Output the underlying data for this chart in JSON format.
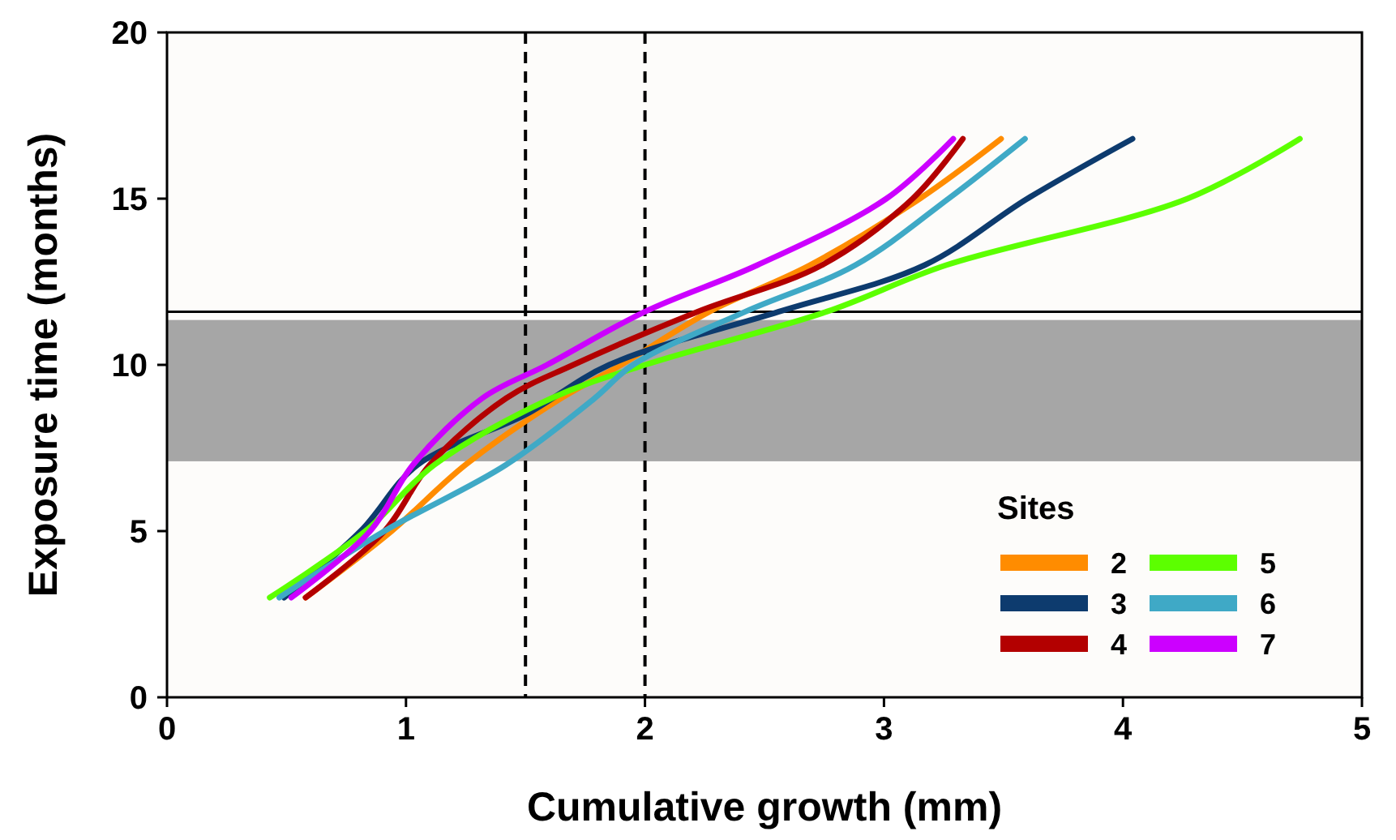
{
  "chart_data": {
    "type": "line",
    "xlabel": "Cumulative growth (mm)",
    "ylabel": "Exposure time (months)",
    "legend_title": "Sites",
    "legend": "bottom right",
    "line_style": "solid",
    "marker": "none",
    "grid": false,
    "xlim": [
      0,
      5
    ],
    "xticks": [
      0,
      1,
      2,
      3,
      4,
      5
    ],
    "ylim": [
      0,
      20
    ],
    "yticks": [
      0,
      5,
      10,
      15,
      20
    ],
    "series": [
      {
        "name": "2",
        "color": "#ff8c00",
        "x": [
          0.58,
          0.94,
          1.25,
          1.65,
          1.9,
          2.27,
          2.69,
          3.15,
          3.49
        ],
        "values": [
          3,
          5,
          7,
          9,
          10,
          11.6,
          13,
          15,
          16.8
        ]
      },
      {
        "name": "3",
        "color": "#0d3b6e",
        "x": [
          0.49,
          0.81,
          1.05,
          1.5,
          1.85,
          2.56,
          3.17,
          3.6,
          4.04
        ],
        "values": [
          3,
          5,
          7,
          8.5,
          10,
          11.6,
          13,
          15,
          16.8
        ]
      },
      {
        "name": "4",
        "color": "#b30000",
        "x": [
          0.58,
          0.91,
          1.1,
          1.42,
          1.7,
          2.22,
          2.74,
          3.12,
          3.33
        ],
        "values": [
          3,
          5,
          7,
          9,
          10,
          11.6,
          13,
          15,
          16.8
        ]
      },
      {
        "name": "5",
        "color": "#5cff00",
        "x": [
          0.43,
          0.83,
          1.12,
          1.61,
          2.0,
          2.76,
          3.26,
          4.27,
          4.74
        ],
        "values": [
          3,
          5,
          7,
          9,
          10,
          11.6,
          13,
          15,
          16.8
        ]
      },
      {
        "name": "6",
        "color": "#3fa9c6",
        "x": [
          0.47,
          0.91,
          1.42,
          1.79,
          1.95,
          2.42,
          2.88,
          3.27,
          3.59
        ],
        "values": [
          3,
          5,
          7,
          9,
          10,
          11.6,
          13,
          15,
          16.8
        ]
      },
      {
        "name": "7",
        "color": "#cc00ff",
        "x": [
          0.52,
          0.85,
          1.03,
          1.32,
          1.59,
          2.0,
          2.47,
          3.01,
          3.29
        ],
        "values": [
          3,
          5,
          7,
          9,
          10,
          11.6,
          13,
          15,
          16.8
        ]
      }
    ],
    "ref_lines": [
      {
        "axis": "x",
        "value": 1.5,
        "line_style": "dashed",
        "color": "#000000"
      },
      {
        "axis": "x",
        "value": 2,
        "line_style": "dashed",
        "color": "#000000"
      },
      {
        "axis": "y",
        "value": 11.6,
        "line_style": "solid",
        "color": "#000000"
      }
    ],
    "bands": [
      {
        "axis": "y",
        "from": 7.1,
        "to": 11.35,
        "color": "#a6a6a6"
      }
    ]
  }
}
